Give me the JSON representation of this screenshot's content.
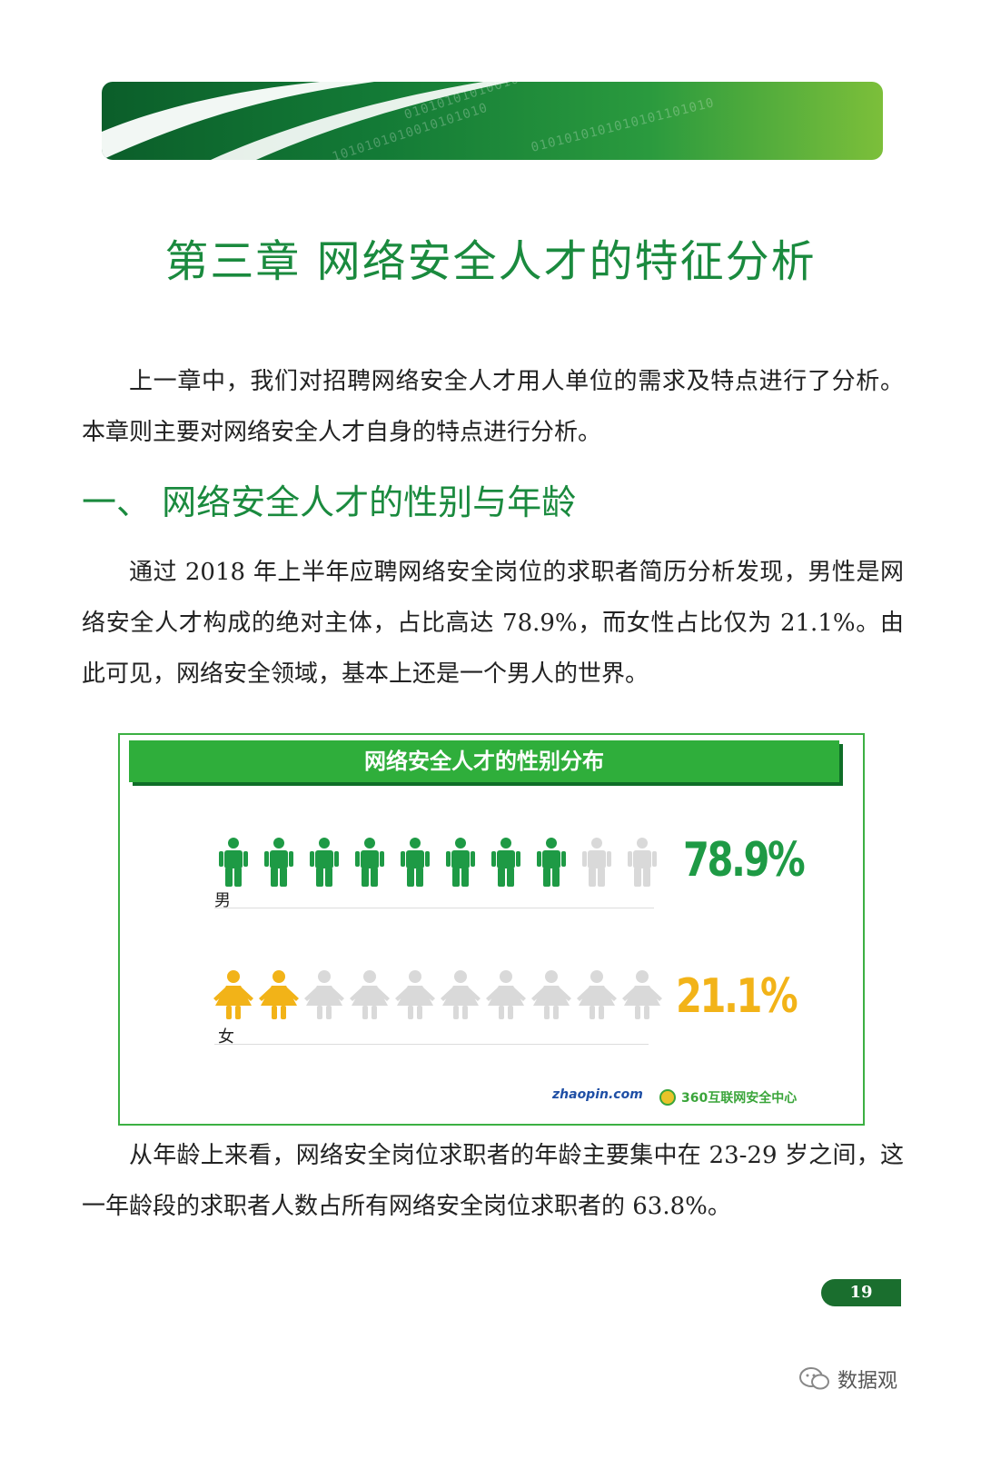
{
  "chapter": {
    "title": "第三章   网络安全人才的特征分析"
  },
  "intro_paragraph": "上一章中，我们对招聘网络安全人才用人单位的需求及特点进行了分析。本章则主要对网络安全人才自身的特点进行分析。",
  "section": {
    "heading": "一、 网络安全人才的性别与年龄",
    "paragraph_1": "通过 2018 年上半年应聘网络安全岗位的求职者简历分析发现，男性是网络安全人才构成的绝对主体，占比高达 78.9%，而女性占比仅为 21.1%。由此可见，网络安全领域，基本上还是一个男人的世界。",
    "paragraph_2": "从年龄上来看，网络安全岗位求职者的年龄主要集中在 23-29 岁之间，这一年龄段的求职者人数占所有网络安全岗位求职者的 63.8%。"
  },
  "figure": {
    "title": "网络安全人才的性别分布",
    "male": {
      "label": "男",
      "percent_text": "78.9%",
      "filled_icons": 8,
      "total_icons": 10,
      "color": "#1e9a45"
    },
    "female": {
      "label": "女",
      "percent_text": "21.1%",
      "filled_icons": 2,
      "total_icons": 10,
      "color": "#f2b318"
    },
    "inactive_color": "#d9d9d9",
    "logo_left": "zhaopin.com",
    "logo_right": "360互联网安全中心"
  },
  "page_number": "19",
  "watermark": "数据观",
  "colors": {
    "accent_green": "#1a8a3e",
    "banner_dark": "#0b5e2a"
  }
}
